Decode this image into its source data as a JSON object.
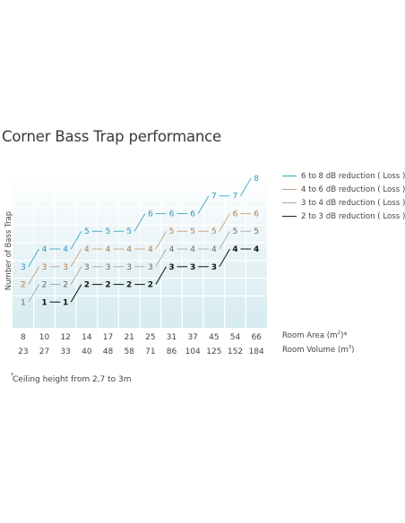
{
  "chart_data": {
    "type": "line",
    "title": "Corner Bass Trap performance",
    "ylabel": "Number of Bass Trap",
    "room_area_label": "Room Area (m",
    "room_area_sup": "2",
    "room_area_suffix": ")*",
    "room_volume_label": "Room Volume (m",
    "room_volume_sup": "3",
    "room_volume_suffix": ")",
    "room_area": [
      8,
      10,
      12,
      14,
      17,
      21,
      25,
      31,
      37,
      45,
      54,
      66
    ],
    "room_volume": [
      23,
      27,
      33,
      40,
      48,
      58,
      71,
      86,
      104,
      125,
      152,
      184
    ],
    "ylim": [
      0,
      8
    ],
    "grid": true,
    "legend_position": "right",
    "series": [
      {
        "name": "6 to 8 dB reduction ( Loss )",
        "color": "#3aa8c8",
        "text_color": "#2b95b8",
        "values": [
          3,
          4,
          4,
          5,
          5,
          5,
          6,
          6,
          6,
          7,
          7,
          8
        ]
      },
      {
        "name": "4 to 6 dB reduction ( Loss )",
        "color": "#c9a27c",
        "text_color": "#b07a45",
        "values": [
          2,
          3,
          3,
          4,
          4,
          4,
          4,
          5,
          5,
          5,
          6,
          6
        ]
      },
      {
        "name": "3 to 4 dB reduction ( Loss )",
        "color": "#a8a8a8",
        "text_color": "#666666",
        "values": [
          1,
          2,
          2,
          3,
          3,
          3,
          3,
          4,
          4,
          4,
          5,
          5
        ]
      },
      {
        "name": "2 to 3 dB reduction ( Loss )",
        "color": "#222222",
        "text_color": "#111111",
        "values": [
          null,
          1,
          1,
          2,
          2,
          2,
          2,
          3,
          3,
          3,
          4,
          4
        ]
      }
    ]
  },
  "footnote_star": "*",
  "footnote": "Ceiling height from 2,7 to 3m"
}
